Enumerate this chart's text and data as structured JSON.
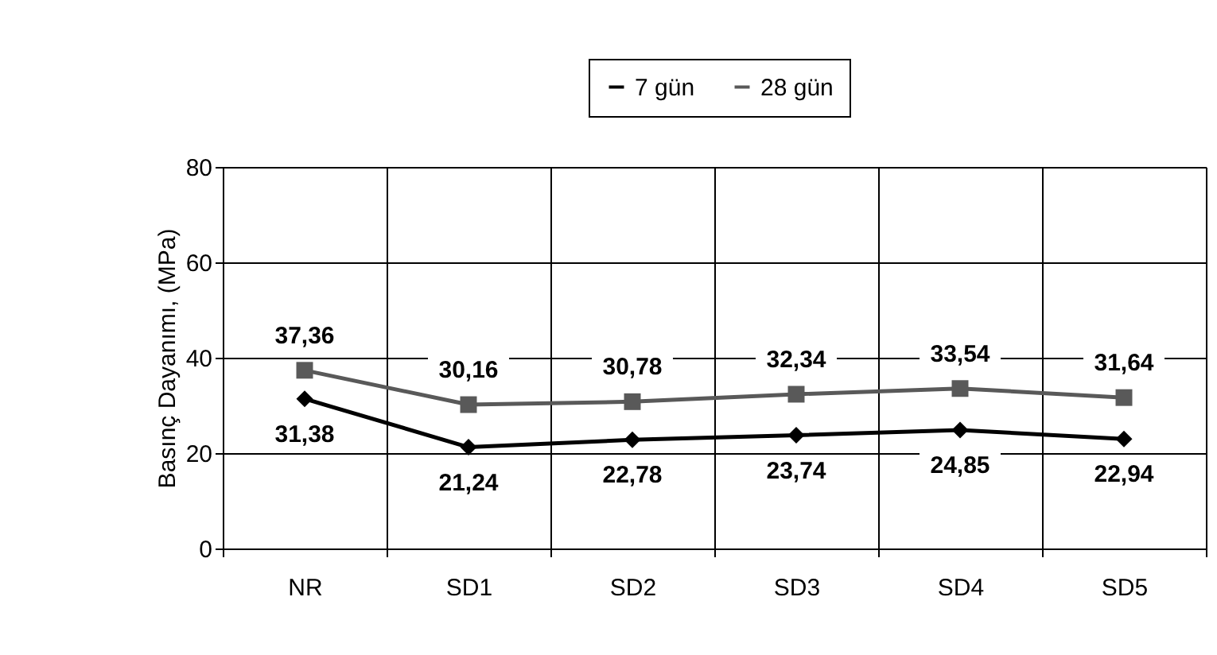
{
  "chart_data": {
    "type": "line",
    "ylabel": "Basınç Dayanımı, (MPa)",
    "categories": [
      "NR",
      "SD1",
      "SD2",
      "SD3",
      "SD4",
      "SD5"
    ],
    "series": [
      {
        "name": "7 gün",
        "color": "#000000",
        "marker": "diamond",
        "values": [
          31.38,
          21.24,
          22.78,
          23.74,
          24.85,
          22.94
        ],
        "value_labels": [
          "31,38",
          "21,24",
          "22,78",
          "23,74",
          "24,85",
          "22,94"
        ]
      },
      {
        "name": "28 gün",
        "color": "#595959",
        "marker": "square",
        "values": [
          37.36,
          30.16,
          30.78,
          32.34,
          33.54,
          31.64
        ],
        "value_labels": [
          "37,36",
          "30,16",
          "30,78",
          "32,34",
          "33,54",
          "31,64"
        ]
      }
    ],
    "ylim": [
      0,
      80
    ],
    "yticks": [
      0,
      20,
      40,
      60,
      80
    ],
    "grid": true,
    "legend": "top right",
    "line_style": "solid"
  }
}
